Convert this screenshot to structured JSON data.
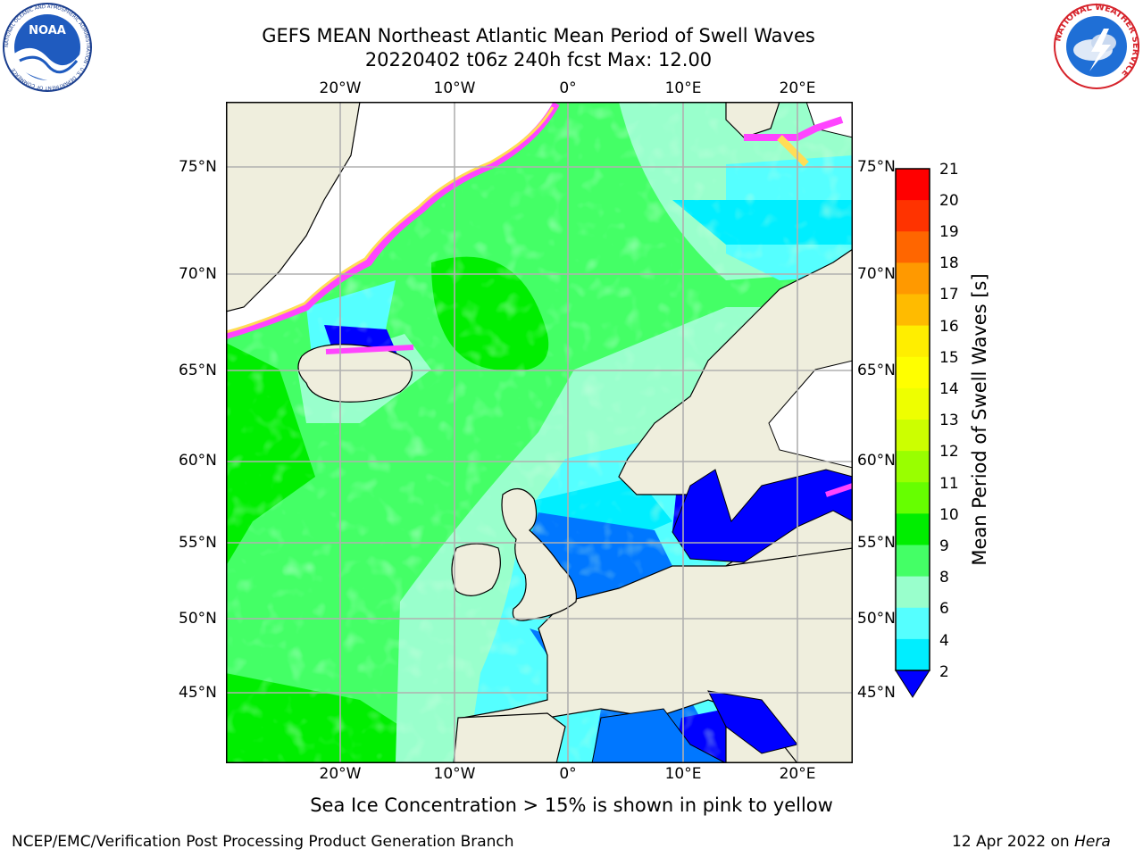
{
  "header": {
    "title_line1": "GEFS MEAN Northeast Atlantic Mean Period of Swell Waves",
    "title_line2": "20220402 t06z 240h fcst   Max: 12.00"
  },
  "logos": {
    "noaa_text": "NOAA",
    "noaa_ring_text": "NATIONAL OCEANIC AND ATMOSPHERIC ADMINISTRATION · U.S. DEPARTMENT OF COMMERCE",
    "nws_ring_text": "NATIONAL WEATHER SERVICE"
  },
  "map": {
    "lon_labels": [
      "20°W",
      "10°W",
      "0°",
      "10°E",
      "20°E"
    ],
    "lat_labels": [
      "75°N",
      "70°N",
      "65°N",
      "60°N",
      "55°N",
      "50°N",
      "45°N"
    ],
    "colors": {
      "land": "#efeedd",
      "ice_pink": "#ff44ff",
      "ice_yellow": "#ffdd55",
      "grid": "#b0b0b0"
    }
  },
  "colorbar": {
    "label": "Mean Period of Swell Waves [s]",
    "ticks": [
      "21",
      "20",
      "19",
      "18",
      "17",
      "16",
      "15",
      "14",
      "13",
      "12",
      "11",
      "10",
      "9",
      "8",
      "6",
      "4",
      "2"
    ],
    "colors": [
      "#ff0000",
      "#ff3300",
      "#ff6600",
      "#ff9900",
      "#ffbb00",
      "#ffee00",
      "#ffff00",
      "#eeff00",
      "#ccff00",
      "#99ff00",
      "#66ff00",
      "#00ee00",
      "#44ff66",
      "#99ffcc",
      "#55ffff",
      "#00eeff",
      "#0077ff"
    ],
    "under_color": "#0000ff"
  },
  "footer": {
    "ice_note": "Sea Ice Concentration > 15% is shown in pink to yellow",
    "branch": "NCEP/EMC/Verification Post Processing Product Generation Branch",
    "date": "12 Apr 2022 on ",
    "host": "Hera"
  }
}
